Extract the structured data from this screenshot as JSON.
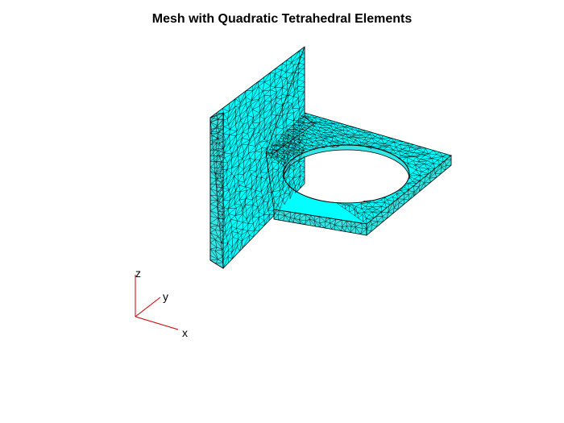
{
  "title": "Mesh with Quadratic Tetrahedral Elements",
  "colors": {
    "background": "#ffffff",
    "mesh_face": "#00ffff",
    "mesh_face_shaded": "#33e5e5",
    "mesh_edge": "#000000",
    "triad_axes": "#cc0000"
  },
  "triad": {
    "x_label": "x",
    "y_label": "y",
    "z_label": "z"
  },
  "mesh": {
    "element_type": "quadratic tetrahedral"
  }
}
